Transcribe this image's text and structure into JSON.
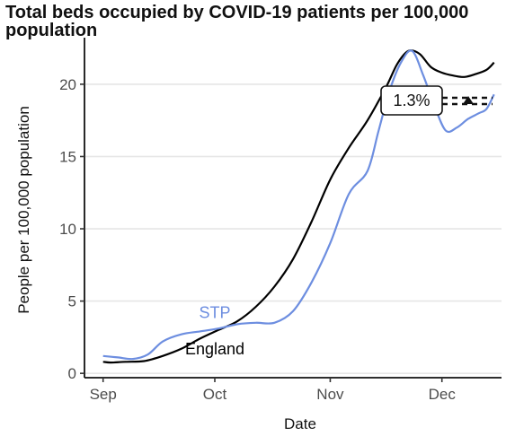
{
  "chart_data": {
    "type": "line",
    "title": "Total beds occupied by COVID-19 patients per 100,000 population",
    "xlabel": "Date",
    "ylabel": "People per 100,000 population",
    "ylim": [
      -0.3,
      22.6
    ],
    "yticks": [
      0,
      5,
      10,
      15,
      20
    ],
    "xlim": [
      "2020-08-27",
      "2020-12-17"
    ],
    "xticks": [
      {
        "date": "2020-09-01",
        "label": "Sep"
      },
      {
        "date": "2020-10-01",
        "label": "Oct"
      },
      {
        "date": "2020-11-01",
        "label": "Nov"
      },
      {
        "date": "2020-12-01",
        "label": "Dec"
      }
    ],
    "grid": true,
    "legend": "none (direct series labels)",
    "annotation": {
      "text": "1.3%",
      "arrow": "up"
    },
    "series": [
      {
        "name": "England",
        "color": "#000000",
        "points": [
          [
            "2020-09-01",
            0.8
          ],
          [
            "2020-09-03",
            0.75
          ],
          [
            "2020-09-07",
            0.8
          ],
          [
            "2020-09-12",
            0.85
          ],
          [
            "2020-09-17",
            1.2
          ],
          [
            "2020-09-22",
            1.7
          ],
          [
            "2020-09-27",
            2.4
          ],
          [
            "2020-10-02",
            3.0
          ],
          [
            "2020-10-07",
            3.6
          ],
          [
            "2020-10-12",
            4.6
          ],
          [
            "2020-10-17",
            6.0
          ],
          [
            "2020-10-22",
            7.9
          ],
          [
            "2020-10-27",
            10.5
          ],
          [
            "2020-11-01",
            13.4
          ],
          [
            "2020-11-06",
            15.6
          ],
          [
            "2020-11-11",
            17.5
          ],
          [
            "2020-11-16",
            19.8
          ],
          [
            "2020-11-19",
            21.4
          ],
          [
            "2020-11-22",
            22.3
          ],
          [
            "2020-11-25",
            22.1
          ],
          [
            "2020-11-28",
            21.2
          ],
          [
            "2020-12-01",
            20.8
          ],
          [
            "2020-12-04",
            20.6
          ],
          [
            "2020-12-07",
            20.5
          ],
          [
            "2020-12-10",
            20.7
          ],
          [
            "2020-12-13",
            21.0
          ],
          [
            "2020-12-15",
            21.5
          ]
        ]
      },
      {
        "name": "STP",
        "color": "#6d8ee0",
        "points": [
          [
            "2020-09-01",
            1.2
          ],
          [
            "2020-09-05",
            1.1
          ],
          [
            "2020-09-09",
            1.0
          ],
          [
            "2020-09-13",
            1.3
          ],
          [
            "2020-09-17",
            2.2
          ],
          [
            "2020-09-22",
            2.7
          ],
          [
            "2020-09-27",
            2.9
          ],
          [
            "2020-10-02",
            3.1
          ],
          [
            "2020-10-07",
            3.4
          ],
          [
            "2020-10-12",
            3.5
          ],
          [
            "2020-10-17",
            3.5
          ],
          [
            "2020-10-22",
            4.3
          ],
          [
            "2020-10-27",
            6.3
          ],
          [
            "2020-11-01",
            9.0
          ],
          [
            "2020-11-06",
            12.4
          ],
          [
            "2020-11-11",
            14.0
          ],
          [
            "2020-11-14",
            16.8
          ],
          [
            "2020-11-17",
            19.6
          ],
          [
            "2020-11-20",
            21.5
          ],
          [
            "2020-11-23",
            22.3
          ],
          [
            "2020-11-26",
            20.6
          ],
          [
            "2020-11-29",
            18.5
          ],
          [
            "2020-12-02",
            16.8
          ],
          [
            "2020-12-05",
            17.0
          ],
          [
            "2020-12-08",
            17.6
          ],
          [
            "2020-12-11",
            18.0
          ],
          [
            "2020-12-13",
            18.3
          ],
          [
            "2020-12-15",
            19.3
          ]
        ]
      }
    ],
    "series_labels": [
      {
        "text": "STP",
        "color": "#6d8ee0",
        "x": "2020-10-01",
        "y": 4.2
      },
      {
        "text": "England",
        "color": "#000000",
        "x": "2020-10-01",
        "y": 1.7
      }
    ]
  }
}
